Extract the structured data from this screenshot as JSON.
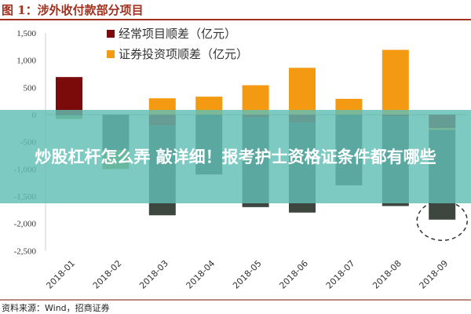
{
  "title": "图 1：涉外收付款部分项目",
  "source": "资料来源：Wind，招商证券",
  "overlay_text": "炒股杠杆怎么弄 敲详细！报考护士资格证条件都有哪些",
  "chart_data": {
    "type": "bar",
    "stacked": true,
    "categories": [
      "2018-01",
      "2018-02",
      "2018-03",
      "2018-04",
      "2018-05",
      "2018-06",
      "2018-07",
      "2018-08",
      "2018-09"
    ],
    "ylim": [
      -2500,
      1500
    ],
    "yticks": [
      1500,
      1000,
      500,
      0,
      -500,
      -1000,
      -1500,
      -2000,
      -2500
    ],
    "ytick_labels": [
      "1,500",
      "1,000",
      "500",
      "0",
      "-500",
      "-1,000",
      "-1,500",
      "-2,000",
      "-2,500"
    ],
    "legend_position": "top-center",
    "series": [
      {
        "name": "经常项目顺差（亿元）",
        "color": "#7b0a0a",
        "values": [
          690,
          0,
          -200,
          0,
          -50,
          -150,
          0,
          -30,
          -250
        ],
        "legend": true
      },
      {
        "name": "证券投资项顺差（亿元）",
        "color": "#f39a12",
        "values": [
          0,
          0,
          300,
          330,
          540,
          860,
          290,
          1190,
          -30
        ],
        "legend": true
      },
      {
        "name": "",
        "color": "#3e4640",
        "values": [
          -20,
          -650,
          -1650,
          -1100,
          -1650,
          -1650,
          -1300,
          -1650,
          -1650
        ],
        "legend": false
      },
      {
        "name": "",
        "color": "#8a9a3c",
        "values": [
          -60,
          -350,
          0,
          0,
          0,
          0,
          0,
          0,
          0
        ],
        "legend": false
      }
    ],
    "annotation": "dashed circle around 2018-09"
  }
}
